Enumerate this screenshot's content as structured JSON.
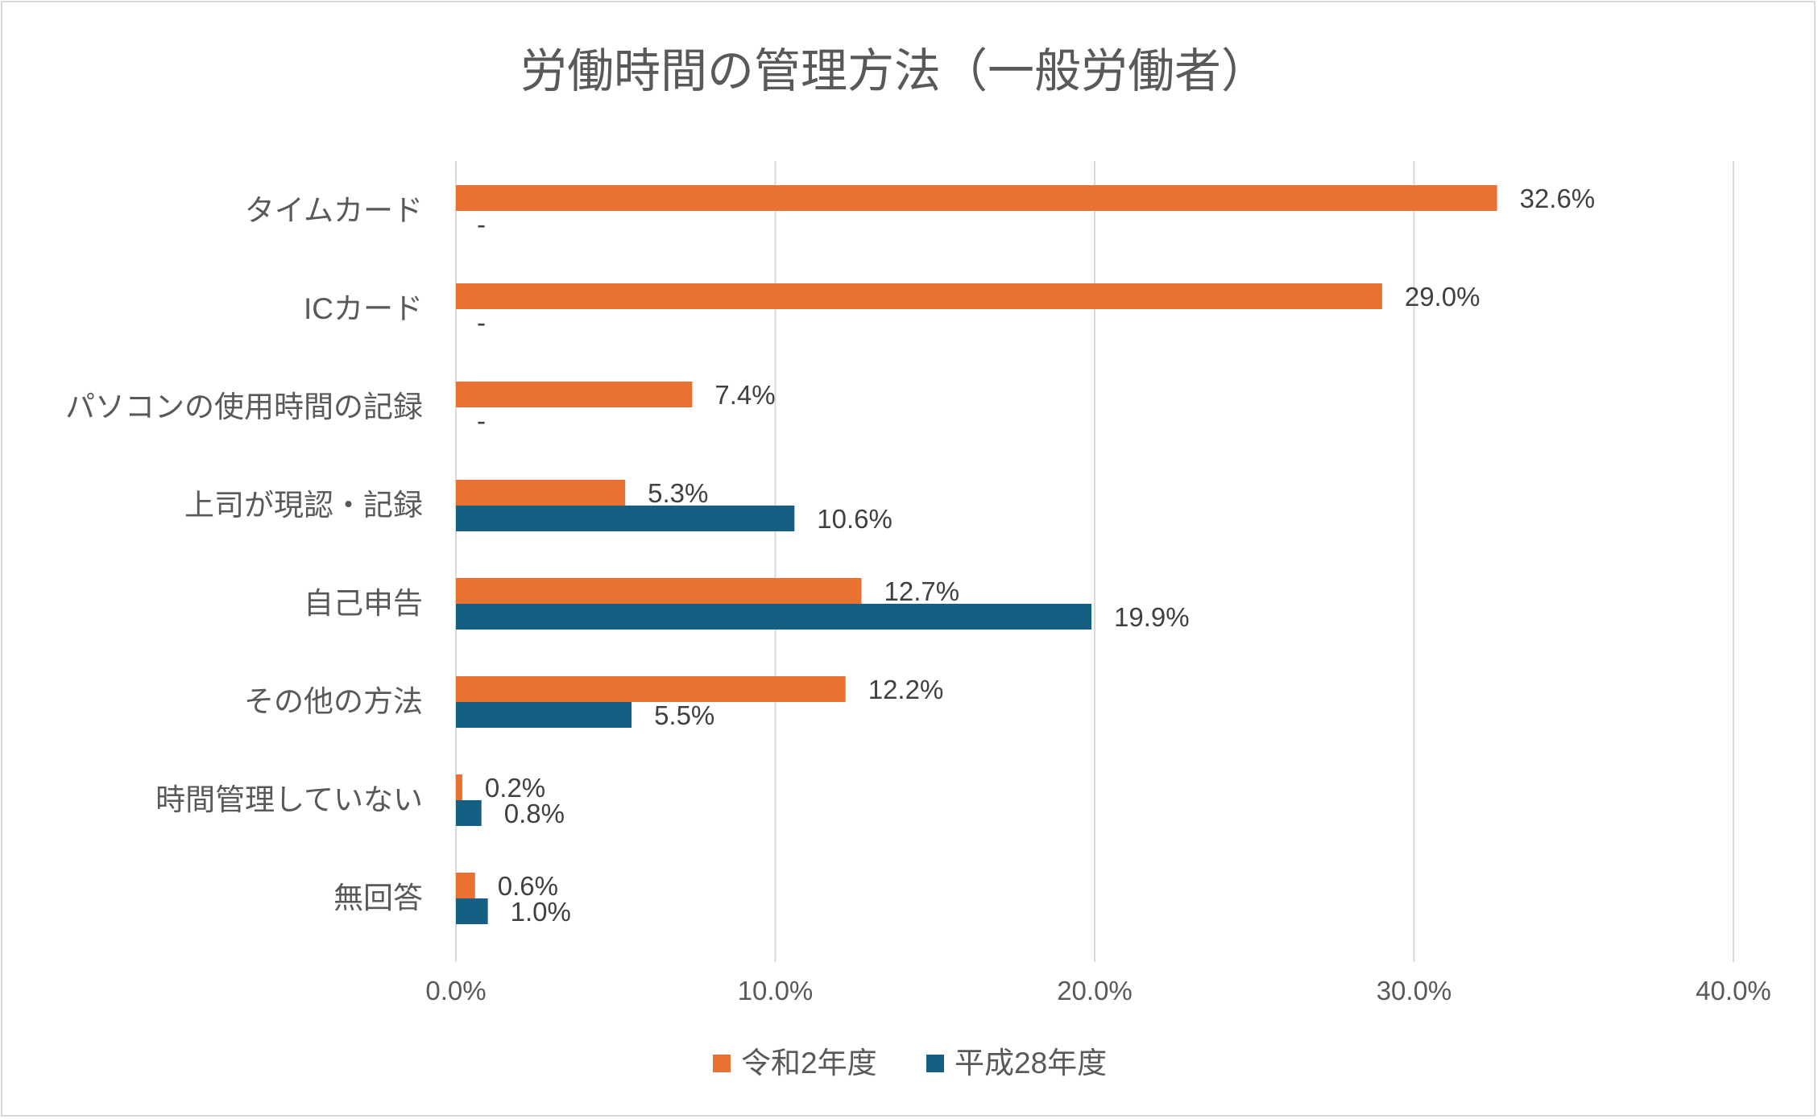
{
  "chart_data": {
    "type": "bar",
    "orientation": "horizontal",
    "title": "労働時間の管理方法（一般労働者）",
    "categories": [
      "タイムカード",
      "ICカード",
      "パソコンの使用時間の記録",
      "上司が現認・記録",
      "自己申告",
      "その他の方法",
      "時間管理していない",
      "無回答"
    ],
    "series": [
      {
        "name": "令和2年度",
        "color": "#E97132",
        "values": [
          32.6,
          29.0,
          7.4,
          5.3,
          12.7,
          12.2,
          0.2,
          0.6
        ],
        "labels": [
          "32.6%",
          "29.0%",
          "7.4%",
          "5.3%",
          "12.7%",
          "12.2%",
          "0.2%",
          "0.6%"
        ]
      },
      {
        "name": "平成28年度",
        "color": "#156082",
        "values": [
          null,
          null,
          null,
          10.6,
          19.9,
          5.5,
          0.8,
          1.0
        ],
        "labels": [
          "-",
          "-",
          "-",
          "10.6%",
          "19.9%",
          "5.5%",
          "0.8%",
          "1.0%"
        ]
      }
    ],
    "xlim": [
      0,
      40
    ],
    "xticks": [
      "0.0%",
      "10.0%",
      "20.0%",
      "30.0%",
      "40.0%"
    ],
    "grid": true,
    "legend_position": "bottom"
  }
}
